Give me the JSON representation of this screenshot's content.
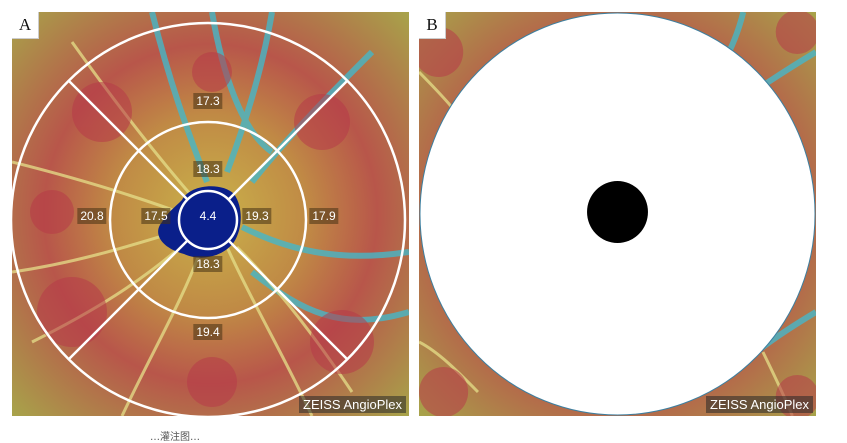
{
  "panels": {
    "a": {
      "label": "A",
      "brand": "ZEISS AngioPlex",
      "values": {
        "center": "4.4",
        "inner_superior": "18.3",
        "inner_inferior": "18.3",
        "inner_nasal": "19.3",
        "inner_temporal": "17.5",
        "outer_superior": "17.3",
        "outer_inferior": "19.4",
        "outer_nasal": "17.9",
        "outer_temporal": "20.8"
      }
    },
    "b": {
      "label": "B",
      "brand": "ZEISS AngioPlex"
    }
  },
  "caption": "…灌注图…",
  "colors": {
    "heatmap_red": "#b8404a",
    "heatmap_yellow": "#c8c050",
    "heatmap_green": "#7fb56a",
    "heatmap_cyan": "#3fb8c8",
    "foveal_blue": "#0a1f8a",
    "ring_white": "#ffffff"
  }
}
